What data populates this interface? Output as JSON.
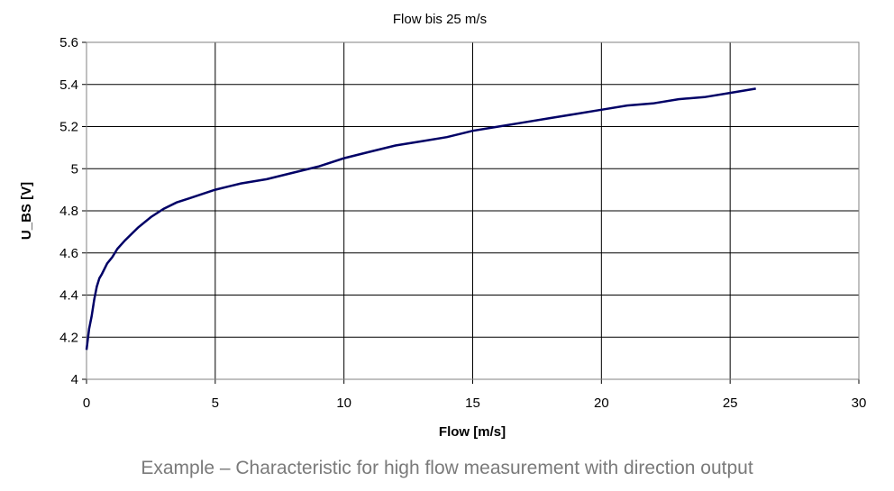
{
  "caption": "Example – Characteristic for high flow measurement with direction output",
  "chart_data": {
    "type": "line",
    "title": "Flow bis 25 m/s",
    "xlabel": "Flow [m/s]",
    "ylabel": "U_BS [V]",
    "xlim": [
      0,
      30
    ],
    "ylim": [
      4,
      5.6
    ],
    "xticks": [
      0,
      5,
      10,
      15,
      20,
      25,
      30
    ],
    "yticks": [
      4,
      4.2,
      4.4,
      4.6,
      4.8,
      5,
      5.2,
      5.4,
      5.6
    ],
    "ytick_labels": [
      "4",
      "4.2",
      "4.4",
      "4.6",
      "4.8",
      "5",
      "5.2",
      "5.4",
      "5.6"
    ],
    "grid": true,
    "line_color": "#000066",
    "series": [
      {
        "x": [
          0,
          0.1,
          0.2,
          0.3,
          0.4,
          0.5,
          0.6,
          0.8,
          1.0,
          1.2,
          1.5,
          2.0,
          2.5,
          3.0,
          3.5,
          4.0,
          4.5,
          5.0,
          6.0,
          7.0,
          8.0,
          9.0,
          10.0,
          11.0,
          12.0,
          13.0,
          14.0,
          15.0,
          16.0,
          17.0,
          18.0,
          19.0,
          20.0,
          21.0,
          22.0,
          23.0,
          24.0,
          25.0,
          26.0
        ],
        "y": [
          4.14,
          4.24,
          4.3,
          4.38,
          4.44,
          4.48,
          4.5,
          4.55,
          4.58,
          4.62,
          4.66,
          4.72,
          4.77,
          4.81,
          4.84,
          4.86,
          4.88,
          4.9,
          4.93,
          4.95,
          4.98,
          5.01,
          5.05,
          5.08,
          5.11,
          5.13,
          5.15,
          5.18,
          5.2,
          5.22,
          5.24,
          5.26,
          5.28,
          5.3,
          5.31,
          5.33,
          5.34,
          5.36,
          5.38
        ]
      }
    ]
  }
}
